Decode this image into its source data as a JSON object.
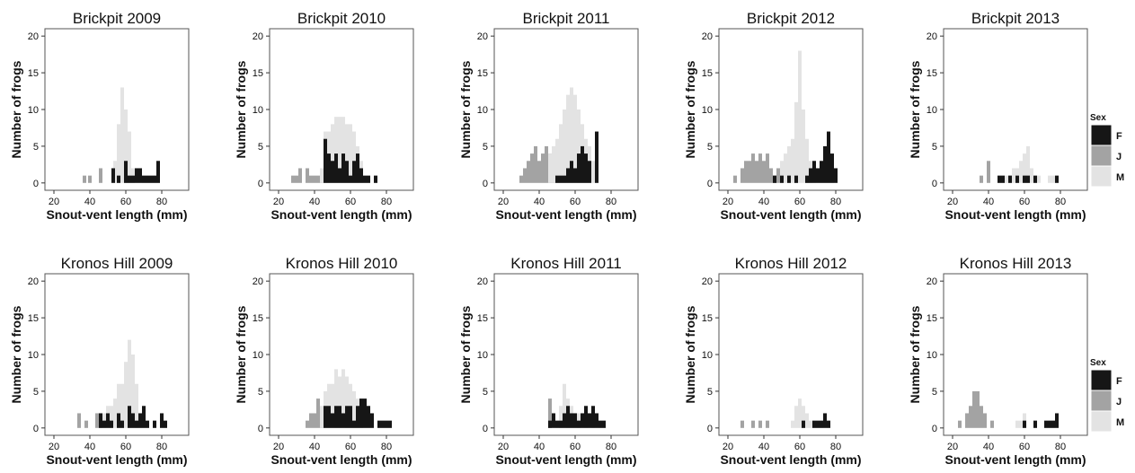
{
  "legend": {
    "title": "Sex",
    "entries": [
      {
        "label": "F",
        "color": "#161616"
      },
      {
        "label": "J",
        "color": "#a3a3a3"
      },
      {
        "label": "M",
        "color": "#e3e3e3"
      }
    ]
  },
  "chart_data": [
    {
      "type": "bar",
      "title": "Brickpit 2009",
      "xlabel": "Snout-vent length (mm)",
      "ylabel": "Number of frogs",
      "xlim": [
        15,
        95
      ],
      "ylim": [
        -1,
        21
      ],
      "xticks": [
        20,
        40,
        60,
        80
      ],
      "yticks": [
        0,
        5,
        10,
        15,
        20
      ],
      "bin_width": 2,
      "series": [
        {
          "name": "J",
          "x": [
            37,
            40,
            46
          ],
          "y": [
            1,
            1,
            2
          ]
        },
        {
          "name": "M",
          "x": [
            54,
            56,
            58,
            60,
            62,
            64
          ],
          "y": [
            3,
            8,
            13,
            10,
            7,
            2
          ]
        },
        {
          "name": "F",
          "x": [
            53,
            56,
            60,
            62,
            64,
            66,
            68,
            70,
            72,
            74,
            76,
            78
          ],
          "y": [
            2,
            1,
            3,
            1,
            1,
            2,
            2,
            1,
            1,
            1,
            1,
            3
          ]
        }
      ]
    },
    {
      "type": "bar",
      "title": "Brickpit 2010",
      "xlabel": "Snout-vent length (mm)",
      "ylabel": "Number of frogs",
      "xlim": [
        15,
        95
      ],
      "ylim": [
        -1,
        21
      ],
      "xticks": [
        20,
        40,
        60,
        80
      ],
      "yticks": [
        0,
        5,
        10,
        15,
        20
      ],
      "bin_width": 2,
      "series": [
        {
          "name": "J",
          "x": [
            28,
            30,
            32,
            36,
            38,
            40,
            42,
            44
          ],
          "y": [
            1,
            1,
            2,
            2,
            1,
            1,
            1,
            1
          ]
        },
        {
          "name": "M",
          "x": [
            44,
            46,
            48,
            50,
            52,
            54,
            56,
            58,
            60,
            62,
            64,
            66
          ],
          "y": [
            2,
            7,
            7,
            8,
            9,
            9,
            9,
            8,
            8,
            7,
            5,
            3
          ]
        },
        {
          "name": "F",
          "x": [
            46,
            48,
            50,
            52,
            54,
            56,
            58,
            60,
            62,
            64,
            66,
            68,
            70,
            74
          ],
          "y": [
            6,
            4,
            3,
            4,
            2,
            4,
            3,
            1,
            3,
            4,
            2,
            1,
            1,
            1
          ]
        }
      ]
    },
    {
      "type": "bar",
      "title": "Brickpit 2011",
      "xlabel": "Snout-vent length (mm)",
      "ylabel": "Number of frogs",
      "xlim": [
        15,
        95
      ],
      "ylim": [
        -1,
        21
      ],
      "xticks": [
        20,
        40,
        60,
        80
      ],
      "yticks": [
        0,
        5,
        10,
        15,
        20
      ],
      "bin_width": 2,
      "series": [
        {
          "name": "J",
          "x": [
            30,
            32,
            34,
            36,
            38,
            40,
            42,
            44,
            46,
            48
          ],
          "y": [
            1,
            2,
            3,
            4,
            5,
            3,
            4,
            5,
            4,
            3
          ]
        },
        {
          "name": "M",
          "x": [
            46,
            48,
            50,
            52,
            54,
            56,
            58,
            60,
            62,
            64,
            66,
            68,
            70
          ],
          "y": [
            4,
            5,
            6,
            8,
            10,
            12,
            13,
            12,
            10,
            8,
            6,
            5,
            3
          ]
        },
        {
          "name": "F",
          "x": [
            50,
            52,
            54,
            56,
            58,
            60,
            62,
            64,
            66,
            68,
            72
          ],
          "y": [
            1,
            1,
            1,
            2,
            3,
            2,
            4,
            5,
            4,
            3,
            7
          ]
        }
      ]
    },
    {
      "type": "bar",
      "title": "Brickpit 2012",
      "xlabel": "Snout-vent length (mm)",
      "ylabel": "Number of frogs",
      "xlim": [
        15,
        95
      ],
      "ylim": [
        -1,
        21
      ],
      "xticks": [
        20,
        40,
        60,
        80
      ],
      "yticks": [
        0,
        5,
        10,
        15,
        20
      ],
      "bin_width": 2,
      "series": [
        {
          "name": "J",
          "x": [
            24,
            28,
            30,
            32,
            34,
            36,
            38,
            40,
            42,
            44,
            46,
            48
          ],
          "y": [
            1,
            2,
            3,
            3,
            4,
            3,
            4,
            3,
            4,
            2,
            1,
            2
          ]
        },
        {
          "name": "M",
          "x": [
            50,
            52,
            54,
            56,
            58,
            60,
            62,
            64,
            66
          ],
          "y": [
            3,
            4,
            5,
            6,
            11,
            18,
            10,
            6,
            3
          ]
        },
        {
          "name": "F",
          "x": [
            46,
            50,
            54,
            58,
            64,
            66,
            68,
            70,
            72,
            74,
            76,
            78,
            80
          ],
          "y": [
            1,
            1,
            1,
            1,
            1,
            2,
            3,
            2,
            3,
            5,
            7,
            4,
            2
          ]
        }
      ]
    },
    {
      "type": "bar",
      "title": "Brickpit 2013",
      "xlabel": "Snout-vent length (mm)",
      "ylabel": "Number of frogs",
      "xlim": [
        15,
        95
      ],
      "ylim": [
        -1,
        21
      ],
      "xticks": [
        20,
        40,
        60,
        80
      ],
      "yticks": [
        0,
        5,
        10,
        15,
        20
      ],
      "bin_width": 2,
      "series": [
        {
          "name": "J",
          "x": [
            36,
            40
          ],
          "y": [
            1,
            3
          ]
        },
        {
          "name": "M",
          "x": [
            50,
            52,
            54,
            56,
            58,
            60,
            62,
            64,
            68,
            74,
            76
          ],
          "y": [
            1,
            1,
            2,
            2,
            3,
            4,
            5,
            2,
            1,
            1,
            1
          ]
        },
        {
          "name": "F",
          "x": [
            46,
            48,
            52,
            56,
            60,
            62,
            66,
            78
          ],
          "y": [
            1,
            1,
            1,
            1,
            1,
            1,
            1,
            1
          ]
        }
      ]
    },
    {
      "type": "bar",
      "title": "Kronos Hill 2009",
      "xlabel": "Snout-vent length (mm)",
      "ylabel": "Number of frogs",
      "xlim": [
        15,
        95
      ],
      "ylim": [
        -1,
        21
      ],
      "xticks": [
        20,
        40,
        60,
        80
      ],
      "yticks": [
        0,
        5,
        10,
        15,
        20
      ],
      "bin_width": 2,
      "series": [
        {
          "name": "J",
          "x": [
            34,
            38,
            44,
            46
          ],
          "y": [
            2,
            1,
            2,
            1
          ]
        },
        {
          "name": "M",
          "x": [
            48,
            50,
            52,
            54,
            56,
            58,
            60,
            62,
            64,
            66,
            68
          ],
          "y": [
            2,
            3,
            3,
            4,
            6,
            6,
            9,
            12,
            10,
            6,
            2
          ]
        },
        {
          "name": "F",
          "x": [
            46,
            48,
            50,
            52,
            56,
            58,
            62,
            64,
            66,
            68,
            70,
            72,
            76,
            80,
            82
          ],
          "y": [
            2,
            1,
            2,
            1,
            2,
            1,
            3,
            2,
            1,
            2,
            3,
            1,
            1,
            2,
            1
          ]
        }
      ]
    },
    {
      "type": "bar",
      "title": "Kronos Hill 2010",
      "xlabel": "Snout-vent length (mm)",
      "ylabel": "Number of frogs",
      "xlim": [
        15,
        95
      ],
      "ylim": [
        -1,
        21
      ],
      "xticks": [
        20,
        40,
        60,
        80
      ],
      "yticks": [
        0,
        5,
        10,
        15,
        20
      ],
      "bin_width": 2,
      "series": [
        {
          "name": "J",
          "x": [
            36,
            38,
            40,
            42,
            44
          ],
          "y": [
            1,
            2,
            2,
            4,
            2
          ]
        },
        {
          "name": "M",
          "x": [
            44,
            46,
            48,
            50,
            52,
            54,
            56,
            58,
            60,
            62,
            64,
            66
          ],
          "y": [
            3,
            5,
            6,
            6,
            8,
            7,
            8,
            7,
            6,
            5,
            4,
            3
          ]
        },
        {
          "name": "F",
          "x": [
            46,
            48,
            50,
            52,
            54,
            56,
            58,
            60,
            62,
            64,
            66,
            68,
            70,
            72,
            76,
            78,
            80,
            82
          ],
          "y": [
            3,
            3,
            2,
            3,
            3,
            2,
            3,
            3,
            1,
            3,
            4,
            4,
            3,
            2,
            1,
            1,
            1,
            1
          ]
        }
      ]
    },
    {
      "type": "bar",
      "title": "Kronos Hill 2011",
      "xlabel": "Snout-vent length (mm)",
      "ylabel": "Number of frogs",
      "xlim": [
        15,
        95
      ],
      "ylim": [
        -1,
        21
      ],
      "xticks": [
        20,
        40,
        60,
        80
      ],
      "yticks": [
        0,
        5,
        10,
        15,
        20
      ],
      "bin_width": 2,
      "series": [
        {
          "name": "J",
          "x": [
            46
          ],
          "y": [
            4
          ]
        },
        {
          "name": "M",
          "x": [
            52,
            54,
            56,
            58,
            60,
            62
          ],
          "y": [
            3,
            6,
            4,
            3,
            2,
            2
          ]
        },
        {
          "name": "F",
          "x": [
            46,
            48,
            50,
            52,
            54,
            56,
            58,
            60,
            62,
            64,
            66,
            68,
            70,
            72,
            74,
            76
          ],
          "y": [
            1,
            2,
            1,
            1,
            2,
            3,
            2,
            2,
            1,
            2,
            3,
            2,
            3,
            2,
            1,
            1
          ]
        }
      ]
    },
    {
      "type": "bar",
      "title": "Kronos Hill 2012",
      "xlabel": "Snout-vent length (mm)",
      "ylabel": "Number of frogs",
      "xlim": [
        15,
        95
      ],
      "ylim": [
        -1,
        21
      ],
      "xticks": [
        20,
        40,
        60,
        80
      ],
      "yticks": [
        0,
        5,
        10,
        15,
        20
      ],
      "bin_width": 2,
      "series": [
        {
          "name": "J",
          "x": [
            28,
            34,
            38,
            42
          ],
          "y": [
            1,
            1,
            1,
            1
          ]
        },
        {
          "name": "M",
          "x": [
            56,
            58,
            60,
            62,
            64,
            66
          ],
          "y": [
            1,
            3,
            4,
            3,
            2,
            1
          ]
        },
        {
          "name": "F",
          "x": [
            62,
            68,
            70,
            72,
            74,
            76
          ],
          "y": [
            1,
            1,
            1,
            1,
            2,
            1
          ]
        }
      ]
    },
    {
      "type": "bar",
      "title": "Kronos Hill 2013",
      "xlabel": "Snout-vent length (mm)",
      "ylabel": "Number of frogs",
      "xlim": [
        15,
        95
      ],
      "ylim": [
        -1,
        21
      ],
      "xticks": [
        20,
        40,
        60,
        80
      ],
      "yticks": [
        0,
        5,
        10,
        15,
        20
      ],
      "bin_width": 2,
      "series": [
        {
          "name": "J",
          "x": [
            24,
            28,
            30,
            32,
            34,
            36,
            38,
            42
          ],
          "y": [
            1,
            2,
            3,
            5,
            5,
            3,
            2,
            1
          ]
        },
        {
          "name": "M",
          "x": [
            56,
            58,
            60
          ],
          "y": [
            1,
            1,
            2
          ]
        },
        {
          "name": "F",
          "x": [
            60,
            66,
            72,
            74,
            76,
            78
          ],
          "y": [
            1,
            1,
            1,
            1,
            1,
            2
          ]
        }
      ]
    }
  ]
}
